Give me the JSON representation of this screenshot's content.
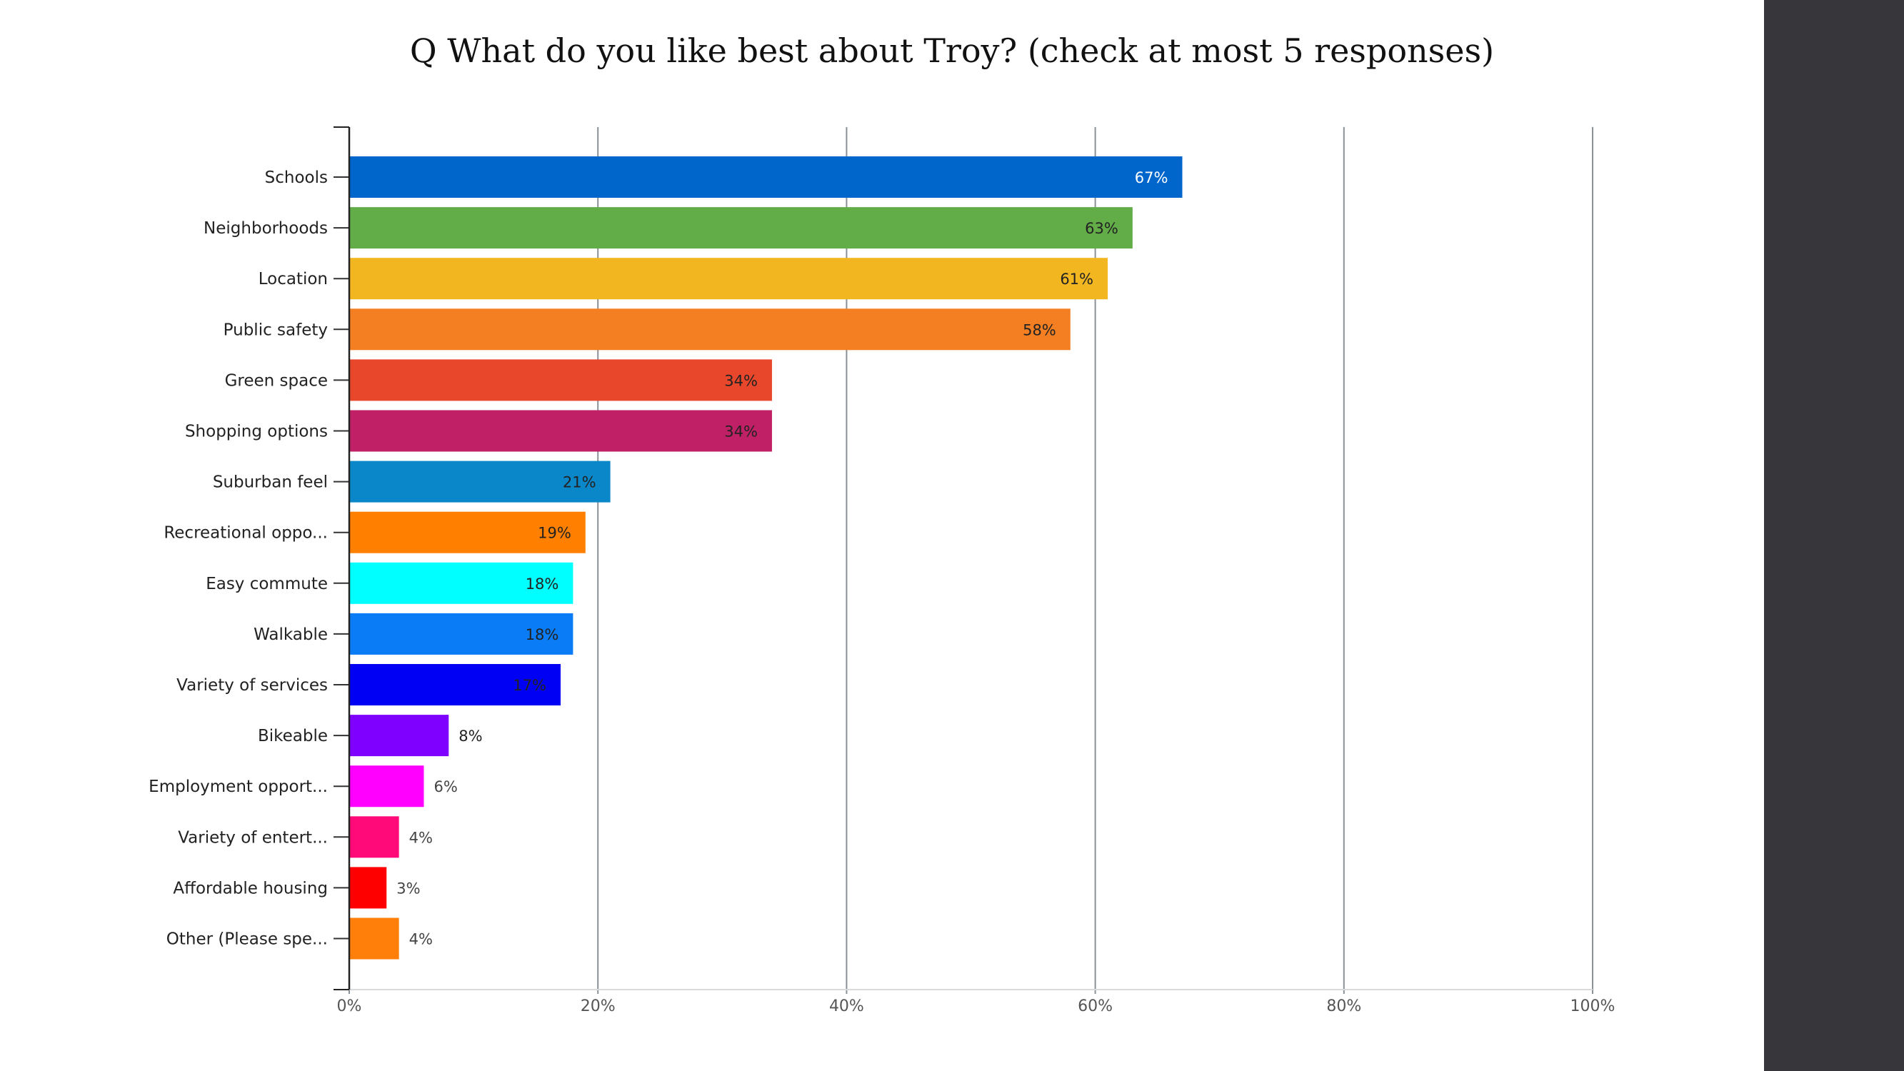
{
  "chart_data": {
    "type": "bar",
    "orientation": "horizontal",
    "title": "Q What do you like best about Troy? (check at most 5 responses)",
    "categories": [
      "Schools",
      "Neighborhoods",
      "Location",
      "Public safety",
      "Green space",
      "Shopping options",
      "Suburban feel",
      "Recreational oppo...",
      "Easy commute",
      "Walkable",
      "Variety of services",
      "Bikeable",
      "Employment opport...",
      "Variety of entert...",
      "Affordable housing",
      "Other (Please spe..."
    ],
    "values": [
      67,
      63,
      61,
      58,
      34,
      34,
      21,
      19,
      18,
      18,
      17,
      8,
      6,
      4,
      3,
      4
    ],
    "value_labels": [
      "67%",
      "63%",
      "61%",
      "58%",
      "34%",
      "34%",
      "21%",
      "19%",
      "18%",
      "18%",
      "17%",
      "8%",
      "6%",
      "4%",
      "3%",
      "4%"
    ],
    "colors": [
      "#0066cc",
      "#63ad48",
      "#f2b620",
      "#f47f22",
      "#e9472b",
      "#c02166",
      "#0a87c9",
      "#ff7f00",
      "#00ffff",
      "#0a7cf5",
      "#0000f5",
      "#8000ff",
      "#ff00ff",
      "#ff0a78",
      "#ff0000",
      "#ff7f0a"
    ],
    "label_colors": [
      "#ffffff",
      "#222222",
      "#222222",
      "#222222",
      "#222222",
      "#222222",
      "#222222",
      "#222222",
      "#222222",
      "#222222",
      "#222222",
      "#222222",
      "#444444",
      "#444444",
      "#444444",
      "#444444"
    ],
    "xlim": [
      0,
      100
    ],
    "x_ticks": [
      0,
      20,
      40,
      60,
      80,
      100
    ],
    "x_tick_labels": [
      "0%",
      "20%",
      "40%",
      "60%",
      "80%",
      "100%"
    ],
    "grid": true,
    "xlabel": "",
    "ylabel": ""
  }
}
